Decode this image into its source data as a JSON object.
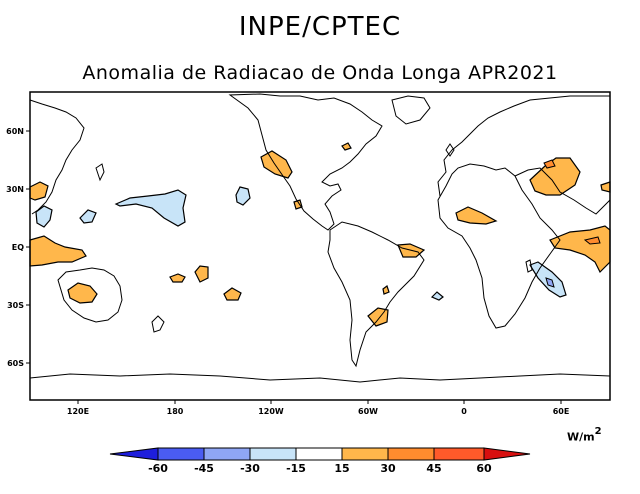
{
  "header": {
    "institution": "INPE/CPTEC",
    "title": "Anomalia de Radiacao de Onda Longa APR2021"
  },
  "axes": {
    "lat_labels": [
      "60N",
      "30N",
      "EQ",
      "30S",
      "60S"
    ],
    "lon_labels": [
      "120E",
      "180",
      "120W",
      "60W",
      "0",
      "60E"
    ]
  },
  "colorbar": {
    "units_base": "W/m",
    "units_exp": "2",
    "levels": [
      "-60",
      "-45",
      "-30",
      "-15",
      "15",
      "30",
      "45",
      "60"
    ],
    "colors": [
      "#1e1edc",
      "#4a5cf2",
      "#8fa6f5",
      "#c8e4f8",
      "#ffffff",
      "#ffb74b",
      "#ff8c2e",
      "#ff5a2a",
      "#d70f0f"
    ]
  }
}
